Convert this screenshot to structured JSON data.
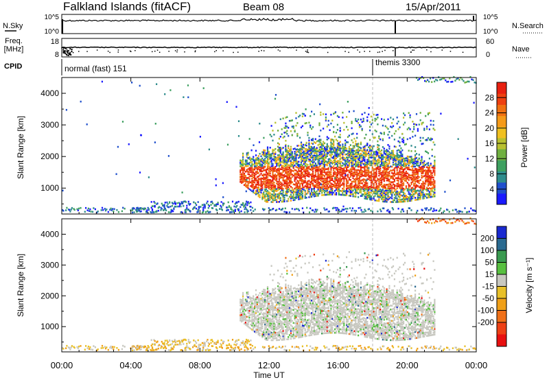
{
  "header": {
    "station": "Falkland Islands (fitACF)",
    "beam": "Beam 08",
    "date": "15/Apr/2011"
  },
  "top_panels": {
    "nsky_label": "N.Sky",
    "nsky_ticks": [
      "10^5",
      "10^0"
    ],
    "nsearch_label": "N.Search",
    "freq_label": "Freq.",
    "freq_unit": "[MHz]",
    "freq_ticks": [
      "18",
      "8"
    ],
    "nave_label": "Nave",
    "nave_ticks": [
      "60",
      "0"
    ],
    "cpid_label": "CPID",
    "cpid_entries": [
      {
        "name": "normal (fast) 151",
        "start_hour": 0
      },
      {
        "name": "themis 3300",
        "start_hour": 18
      }
    ],
    "mode_change_hour": 18
  },
  "chart_data": [
    {
      "type": "heatmap",
      "title": "",
      "xlabel": "Time UT",
      "ylabel": "Slant Range [km]",
      "x_ticks": [
        "00:00",
        "04:00",
        "08:00",
        "12:00",
        "16:00",
        "20:00",
        "00:00"
      ],
      "x_tick_hours": [
        0,
        4,
        8,
        12,
        16,
        20,
        24
      ],
      "xlim": [
        0,
        24
      ],
      "ylim": [
        180,
        4500
      ],
      "y_ticks": [
        1000,
        2000,
        3000,
        4000
      ],
      "colorbar": {
        "label": "Power [dB]",
        "ticks": [
          4,
          8,
          12,
          16,
          20,
          24,
          28
        ],
        "range": [
          0,
          32
        ],
        "colors": [
          "#1a1aff",
          "#1f4fcc",
          "#2e8c8c",
          "#3ea060",
          "#70b040",
          "#b8c030",
          "#f0c020",
          "#f59a18",
          "#f07010",
          "#ee4010",
          "#e82010"
        ]
      }
    },
    {
      "type": "heatmap",
      "title": "",
      "xlabel": "Time UT",
      "ylabel": "Slant Range [km]",
      "x_ticks": [
        "00:00",
        "04:00",
        "08:00",
        "12:00",
        "16:00",
        "20:00",
        "00:00"
      ],
      "x_tick_hours": [
        0,
        4,
        8,
        12,
        16,
        20,
        24
      ],
      "xlim": [
        0,
        24
      ],
      "ylim": [
        180,
        4500
      ],
      "y_ticks": [
        1000,
        2000,
        3000,
        4000
      ],
      "colorbar": {
        "label": "Velocity [m s⁻¹]",
        "ticks": [
          "200",
          "100",
          "50",
          "15",
          "-15",
          "-50",
          "-100",
          "-200"
        ],
        "colors": [
          "#1a2ad0",
          "#2a6a90",
          "#3a9a50",
          "#58c040",
          "#c8c8c0",
          "#e8c028",
          "#f0a018",
          "#f07018",
          "#ee4015",
          "#e81010"
        ]
      }
    }
  ]
}
